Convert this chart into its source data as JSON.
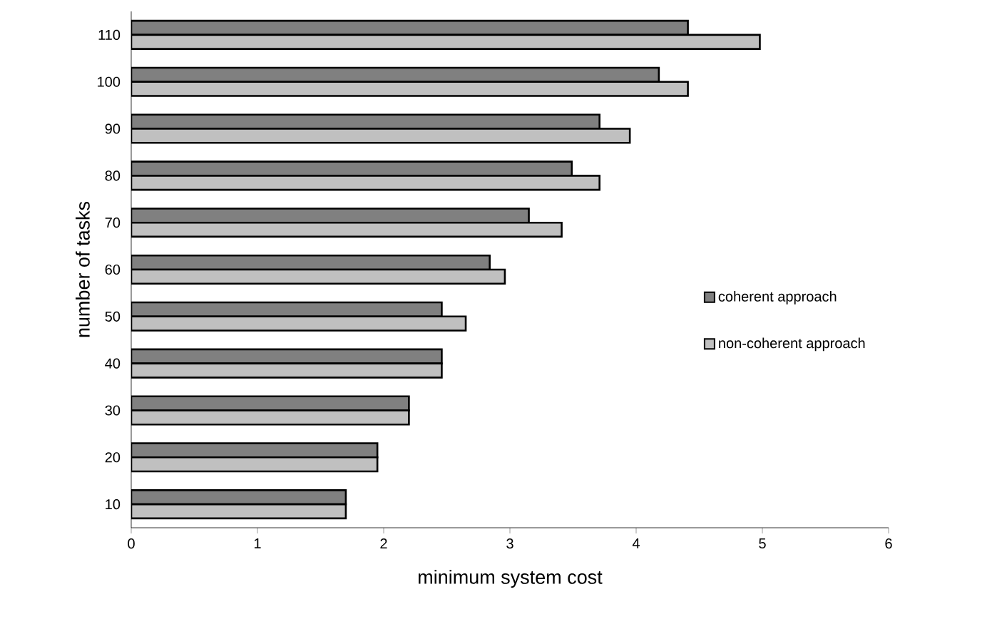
{
  "chart_data": {
    "type": "bar",
    "orientation": "horizontal",
    "xlabel": "minimum system cost",
    "ylabel": "number of tasks",
    "categories": [
      "110",
      "100",
      "90",
      "80",
      "70",
      "60",
      "50",
      "40",
      "30",
      "20",
      "10"
    ],
    "series": [
      {
        "name": "coherent approach",
        "color": "#808080",
        "values": [
          4.41,
          4.18,
          3.71,
          3.49,
          3.15,
          2.84,
          2.46,
          2.46,
          2.2,
          1.95,
          1.7
        ]
      },
      {
        "name": "non-coherent approach",
        "color": "#c0c0c0",
        "values": [
          4.98,
          4.41,
          3.95,
          3.71,
          3.41,
          2.96,
          2.65,
          2.46,
          2.2,
          1.95,
          1.7
        ]
      }
    ],
    "xlim": [
      0,
      6
    ],
    "xticks": [
      0,
      1,
      2,
      3,
      4,
      5,
      6
    ],
    "grid": false,
    "legend": "right"
  }
}
